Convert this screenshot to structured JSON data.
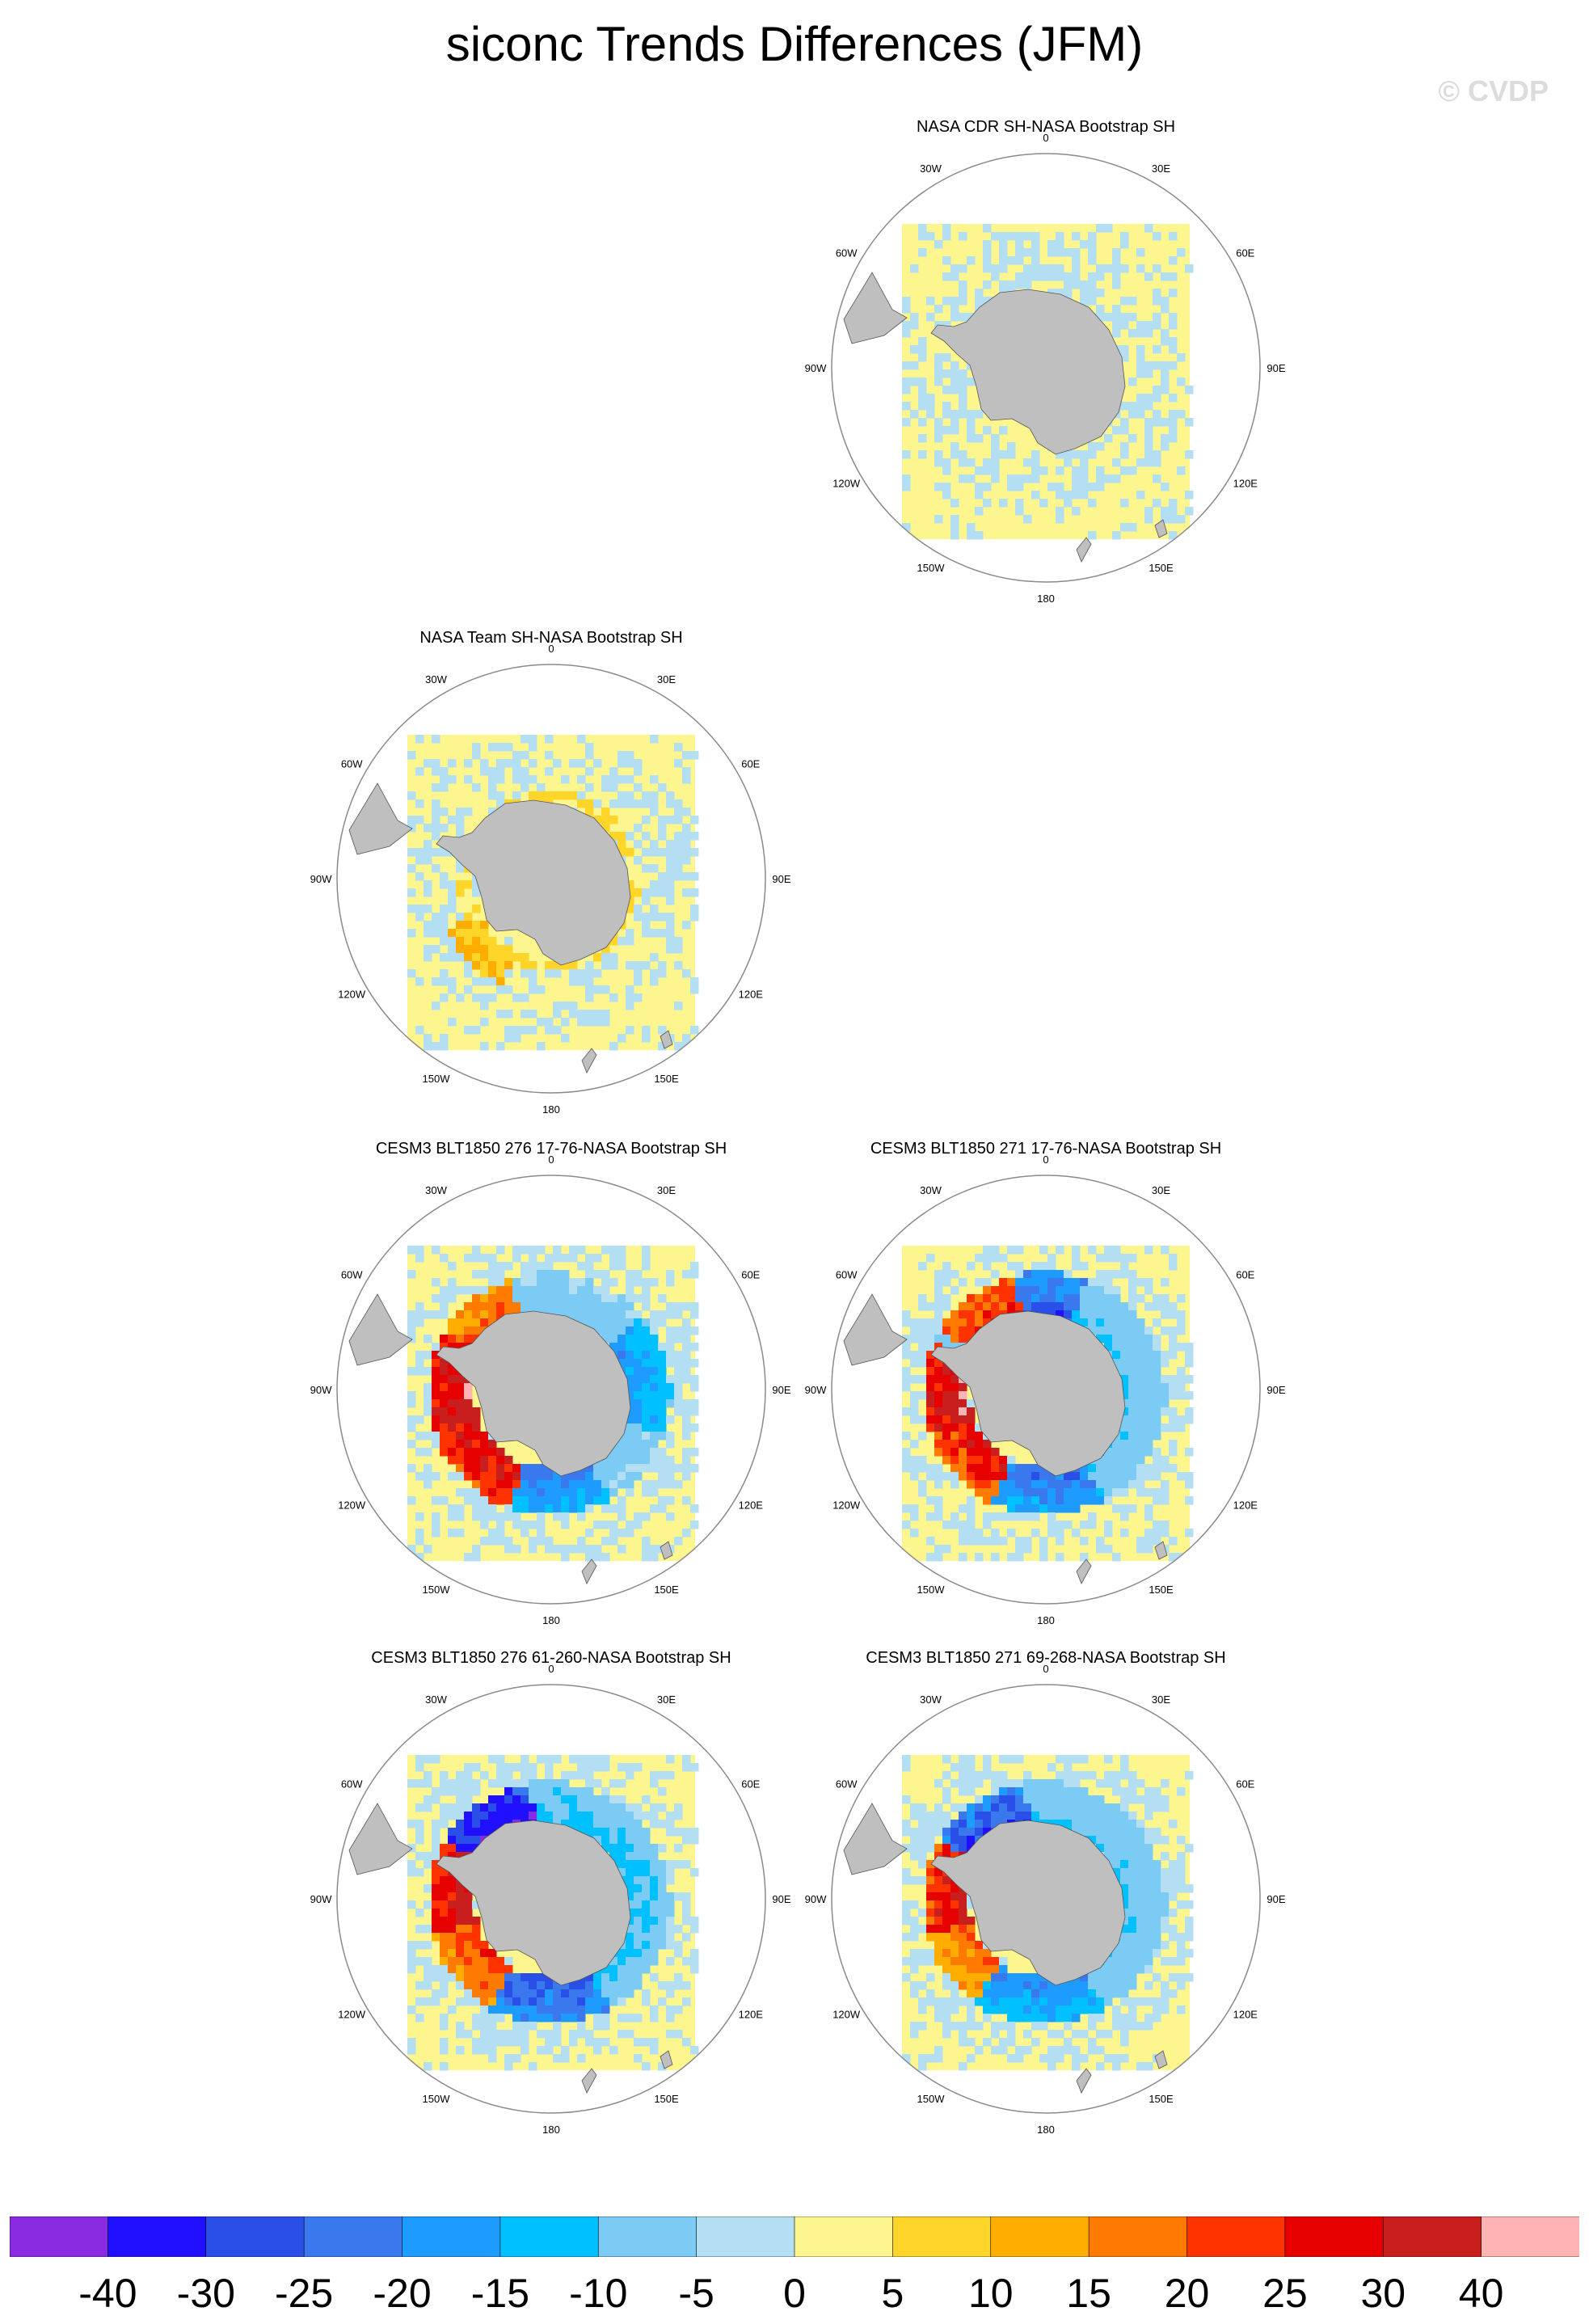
{
  "title": "siconc Trends Differences (JFM)",
  "watermark": "© CVDP",
  "colors": {
    "land": "#bfbfbf",
    "ocean_field": "#fdf68f",
    "circle": "#8a8a8a"
  },
  "lon_labels": [
    "0",
    "30E",
    "60E",
    "90E",
    "120E",
    "150E",
    "180",
    "150W",
    "120W",
    "90W",
    "60W",
    "30W"
  ],
  "panels": [
    {
      "id": "p1",
      "title": "NASA CDR SH-NASA Bootstrap SH",
      "pattern": "weak"
    },
    {
      "id": "p2",
      "title": "NASA Team SH-NASA Bootstrap SH",
      "pattern": "team"
    },
    {
      "id": "p3",
      "title": "CESM3 BLT1850 276 17-76-NASA Bootstrap SH",
      "pattern": "model_a"
    },
    {
      "id": "p4",
      "title": "CESM3 BLT1850 271 17-76-NASA Bootstrap SH",
      "pattern": "model_b"
    },
    {
      "id": "p5",
      "title": "CESM3 BLT1850 276 61-260-NASA Bootstrap SH",
      "pattern": "model_c"
    },
    {
      "id": "p6",
      "title": "CESM3 BLT1850 271 69-268-NASA Bootstrap SH",
      "pattern": "model_d"
    }
  ],
  "colorbar": {
    "labels": [
      "-40",
      "-30",
      "-25",
      "-20",
      "-15",
      "-10",
      "-5",
      "0",
      "5",
      "10",
      "15",
      "20",
      "25",
      "30",
      "40"
    ],
    "colors": [
      "#8a2be2",
      "#2010ff",
      "#2a4fe8",
      "#3a78ee",
      "#1e9bff",
      "#00c0ff",
      "#7ccbf5",
      "#b4dff3",
      "#fdf68f",
      "#ffd52a",
      "#ffad00",
      "#ff7a00",
      "#ff3300",
      "#e60000",
      "#c81e1e",
      "#ffb4b4"
    ]
  }
}
